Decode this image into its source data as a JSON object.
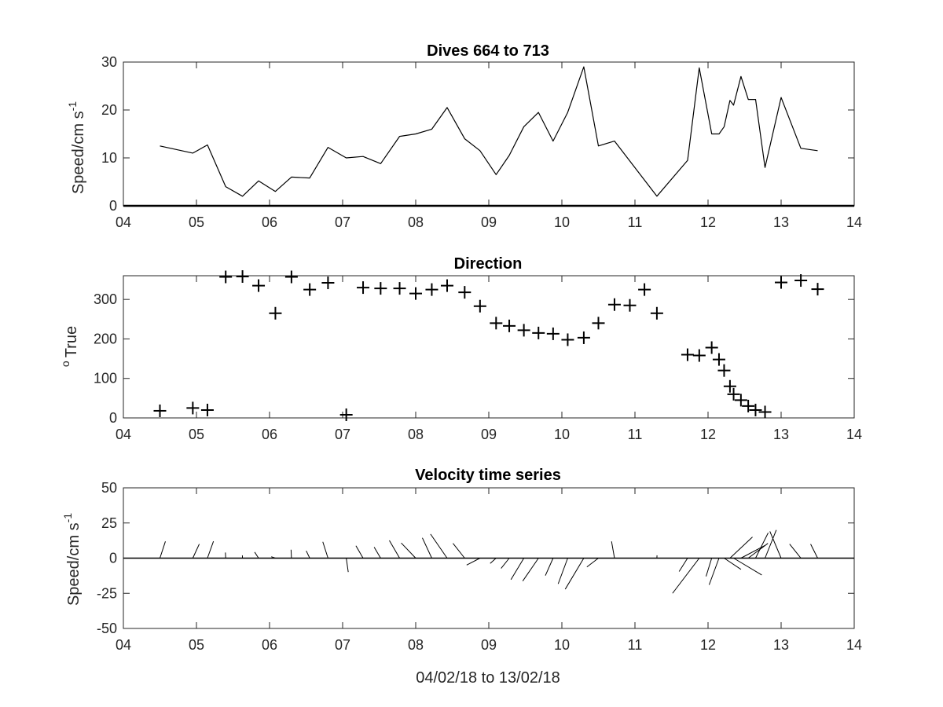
{
  "chart_data": [
    {
      "type": "line",
      "title": "Dives 664 to 713",
      "ylabel": "Speed/cm s",
      "ylabel_sup": "-1",
      "xlim": [
        4,
        14
      ],
      "ylim": [
        0,
        30
      ],
      "xticks": [
        4,
        5,
        6,
        7,
        8,
        9,
        10,
        11,
        12,
        13,
        14
      ],
      "xticklabels": [
        "04",
        "05",
        "06",
        "07",
        "08",
        "09",
        "10",
        "11",
        "12",
        "13",
        "14"
      ],
      "yticks": [
        0,
        10,
        20,
        30
      ],
      "yticklabels": [
        "0",
        "10",
        "20",
        "30"
      ],
      "series": [
        {
          "x": [
            4.5,
            4.95,
            5.15,
            5.4,
            5.63,
            5.85,
            6.08,
            6.3,
            6.55,
            6.8,
            7.05,
            7.28,
            7.52,
            7.78,
            8.0,
            8.22,
            8.43,
            8.67,
            8.88,
            9.1,
            9.28,
            9.48,
            9.68,
            9.88,
            10.08,
            10.3,
            10.5,
            10.72,
            11.3,
            11.72,
            11.88,
            12.05,
            12.15,
            12.22,
            12.3,
            12.35,
            12.45,
            12.55,
            12.65,
            12.78,
            13.0,
            13.27,
            13.5
          ],
          "y": [
            12.5,
            11,
            12.7,
            4,
            2,
            5.2,
            3,
            6,
            5.8,
            12.2,
            10,
            10.3,
            8.8,
            14.5,
            15,
            16,
            20.5,
            14,
            11.5,
            6.5,
            10.5,
            16.5,
            19.5,
            13.5,
            19.5,
            29,
            12.5,
            13.5,
            2,
            9.5,
            28.8,
            15,
            15,
            16.5,
            22,
            21,
            27,
            22.2,
            22.2,
            8,
            22.6,
            12,
            11.5
          ]
        }
      ]
    },
    {
      "type": "scatter",
      "title": "Direction",
      "ylabel": "True",
      "ylabel_sup": "o",
      "xlim": [
        4,
        14
      ],
      "ylim": [
        0,
        360
      ],
      "xticks": [
        4,
        5,
        6,
        7,
        8,
        9,
        10,
        11,
        12,
        13,
        14
      ],
      "xticklabels": [
        "04",
        "05",
        "06",
        "07",
        "08",
        "09",
        "10",
        "11",
        "12",
        "13",
        "14"
      ],
      "yticks": [
        0,
        100,
        200,
        300
      ],
      "yticklabels": [
        "0",
        "100",
        "200",
        "300"
      ],
      "marker": "+",
      "series": [
        {
          "x": [
            4.5,
            4.95,
            5.15,
            5.4,
            5.63,
            5.85,
            6.08,
            6.3,
            6.55,
            6.8,
            7.05,
            7.28,
            7.52,
            7.78,
            8.0,
            8.22,
            8.43,
            8.67,
            8.88,
            9.1,
            9.28,
            9.48,
            9.68,
            9.88,
            10.08,
            10.3,
            10.5,
            10.72,
            10.93,
            11.13,
            11.3,
            11.72,
            11.88,
            12.05,
            12.15,
            12.22,
            12.3,
            12.35,
            12.45,
            12.55,
            12.65,
            12.78,
            13.0,
            13.27,
            13.5
          ],
          "y": [
            18,
            25,
            20,
            357,
            358,
            335,
            265,
            357,
            325,
            342,
            8,
            330,
            328,
            328,
            315,
            325,
            335,
            318,
            283,
            240,
            233,
            222,
            215,
            213,
            198,
            203,
            240,
            287,
            285,
            325,
            265,
            160,
            158,
            178,
            148,
            120,
            80,
            60,
            45,
            30,
            20,
            15,
            343,
            348,
            326
          ]
        }
      ]
    },
    {
      "type": "quiver",
      "title": "Velocity time series",
      "ylabel": "Speed/cm s",
      "ylabel_sup": "-1",
      "xlabel": "04/02/18 to 13/02/18",
      "xlim": [
        4,
        14
      ],
      "ylim": [
        -50,
        50
      ],
      "xticks": [
        4,
        5,
        6,
        7,
        8,
        9,
        10,
        11,
        12,
        13,
        14
      ],
      "xticklabels": [
        "04",
        "05",
        "06",
        "07",
        "08",
        "09",
        "10",
        "11",
        "12",
        "13",
        "14"
      ],
      "yticks": [
        -50,
        -25,
        0,
        25,
        50
      ],
      "yticklabels": [
        "-50",
        "-25",
        "0",
        "25",
        "50"
      ],
      "series": [
        {
          "x": [
            4.5,
            4.95,
            5.15,
            5.4,
            5.63,
            5.85,
            6.08,
            6.3,
            6.55,
            6.8,
            7.05,
            7.28,
            7.52,
            7.78,
            8.0,
            8.22,
            8.43,
            8.67,
            8.88,
            9.1,
            9.28,
            9.48,
            9.68,
            9.88,
            10.08,
            10.3,
            10.5,
            10.72,
            11.3,
            11.72,
            11.88,
            12.05,
            12.15,
            12.22,
            12.3,
            12.35,
            12.45,
            12.55,
            12.65,
            12.78,
            13.0,
            13.27,
            13.5
          ],
          "u": [
            3.9,
            4.6,
            4.3,
            -0.2,
            -0.1,
            -2.8,
            -2.9,
            -0.3,
            -2.5,
            -3.7,
            1.4,
            -5.1,
            -4.6,
            -7.3,
            -10.3,
            -6.7,
            -11.8,
            -8.3,
            -9.5,
            -4.2,
            -5.8,
            -9.2,
            -11.2,
            -5.5,
            -6.8,
            -13.2,
            -8.2,
            -2.1,
            0.1,
            -6.0,
            -19.0,
            -4.0,
            -7.0,
            12.0,
            16.0,
            20.0,
            17.0,
            14.0,
            9.0,
            8.0,
            -8.0,
            -8.0,
            -5.0
          ],
          "v": [
            11.9,
            10.0,
            12.0,
            4.0,
            2.0,
            4.3,
            1.0,
            6.0,
            5.2,
            11.6,
            -9.9,
            8.8,
            7.8,
            12.6,
            10.8,
            14.4,
            17.1,
            10.5,
            -4.9,
            -3.8,
            -7.3,
            -15.3,
            -16.3,
            -12.4,
            -18.3,
            -22.1,
            -6.3,
            11.9,
            2.0,
            -9.5,
            -25.0,
            -13.0,
            -19.0,
            -8.0,
            15.0,
            -12.0,
            9.0,
            10.5,
            18.0,
            20.0,
            19.0,
            10.0,
            10.0
          ]
        }
      ]
    }
  ]
}
